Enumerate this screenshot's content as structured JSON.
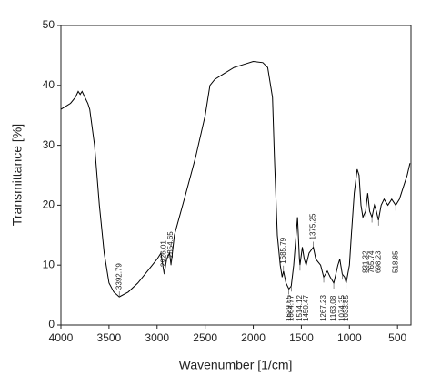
{
  "chart_data": {
    "type": "line",
    "x_label": "Wavenumber [1/cm]",
    "y_label": "Transmittance [%]",
    "x": [
      4000,
      3950,
      3900,
      3850,
      3820,
      3800,
      3780,
      3750,
      3720,
      3700,
      3650,
      3600,
      3550,
      3500,
      3450,
      3392.79,
      3300,
      3200,
      3100,
      3000,
      2960,
      2926.01,
      2900,
      2870,
      2854.65,
      2820,
      2700,
      2600,
      2500,
      2450,
      2400,
      2300,
      2200,
      2100,
      2000,
      1900,
      1850,
      1800,
      1780,
      1750,
      1720,
      1700,
      1685.79,
      1660,
      1629.85,
      1604.77,
      1580,
      1560,
      1540,
      1520,
      1514.12,
      1490,
      1470,
      1450.47,
      1420,
      1375.25,
      1350,
      1300,
      1267.23,
      1230,
      1200,
      1163.08,
      1120,
      1100,
      1074.35,
      1050,
      1033.85,
      1000,
      980,
      950,
      920,
      900,
      880,
      860,
      831.32,
      810,
      790,
      765.74,
      740,
      720,
      698.23,
      670,
      640,
      600,
      560,
      518.85,
      480,
      440,
      400,
      370
    ],
    "values": [
      36,
      36.5,
      37,
      38,
      39,
      38.5,
      39,
      38,
      37,
      36,
      30,
      20,
      12,
      7,
      5.5,
      4.7,
      5.5,
      7,
      9,
      11,
      12,
      8.5,
      11,
      12,
      10,
      15,
      22,
      28,
      35,
      40,
      41,
      42,
      43,
      43.5,
      44,
      43.8,
      43,
      38,
      28,
      15,
      10,
      8,
      9,
      7,
      6,
      6.5,
      10,
      14,
      18,
      11,
      10,
      13,
      11,
      10,
      12,
      13,
      11,
      10,
      8,
      9,
      8,
      7,
      10,
      11,
      8.5,
      8,
      7,
      10,
      15,
      22,
      26,
      25,
      20,
      18,
      19,
      22,
      19,
      18,
      20,
      19,
      17.5,
      20,
      21,
      20,
      21,
      20,
      21,
      23,
      25,
      27
    ],
    "color": "#000000",
    "xlim": [
      4000,
      360
    ],
    "xticks": [
      4000,
      3500,
      3000,
      2500,
      2000,
      1500,
      1000,
      500
    ],
    "ylim": [
      0,
      50
    ],
    "yticks": [
      0,
      10,
      20,
      30,
      40,
      50
    ],
    "grid": false,
    "annotations": [
      3392.79,
      2926.01,
      2854.65,
      1685.79,
      1629.85,
      1604.77,
      1514.12,
      1450.47,
      1375.25,
      1267.23,
      1163.08,
      1074.35,
      1033.85,
      831.32,
      765.74,
      698.23,
      518.85
    ]
  }
}
